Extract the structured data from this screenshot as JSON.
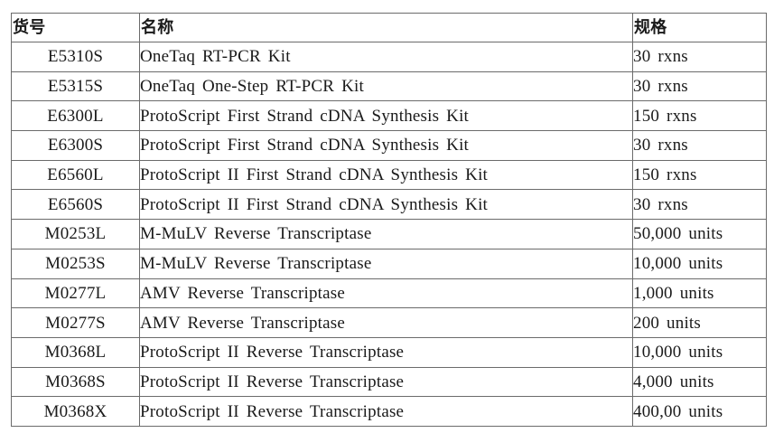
{
  "table": {
    "headers": {
      "code": "货号",
      "name": "名称",
      "spec": "规格"
    },
    "rows": [
      {
        "code": "E5310S",
        "name": "OneTaq RT-PCR  Kit",
        "spec": "30  rxns"
      },
      {
        "code": "E5315S",
        "name": "OneTaq One-Step  RT-PCR  Kit",
        "spec": "30  rxns"
      },
      {
        "code": "E6300L",
        "name": "ProtoScript First  Strand  cDNA  Synthesis  Kit",
        "spec": "150  rxns"
      },
      {
        "code": "E6300S",
        "name": "ProtoScript First  Strand  cDNA  Synthesis  Kit",
        "spec": "30  rxns"
      },
      {
        "code": "E6560L",
        "name": "ProtoScript II  First  Strand  cDNA  Synthesis  Kit",
        "spec": "150  rxns"
      },
      {
        "code": "E6560S",
        "name": "ProtoScript II  First  Strand  cDNA  Synthesis  Kit",
        "spec": "30  rxns"
      },
      {
        "code": "M0253L",
        "name": "M-MuLV Reverse  Transcriptase",
        "spec": "50,000  units"
      },
      {
        "code": "M0253S",
        "name": "M-MuLV Reverse  Transcriptase",
        "spec": "10,000  units"
      },
      {
        "code": "M0277L",
        "name": "AMV Reverse  Transcriptase",
        "spec": "1,000  units"
      },
      {
        "code": "M0277S",
        "name": "AMV Reverse  Transcriptase",
        "spec": "200  units"
      },
      {
        "code": "M0368L",
        "name": "ProtoScript II Reverse  Transcriptase",
        "spec": "10,000  units"
      },
      {
        "code": "M0368S",
        "name": "ProtoScript II  Reverse  Transcriptase",
        "spec": "4,000  units"
      },
      {
        "code": "M0368X",
        "name": "ProtoScript II Reverse  Transcriptase",
        "spec": "400,00  units"
      }
    ]
  }
}
